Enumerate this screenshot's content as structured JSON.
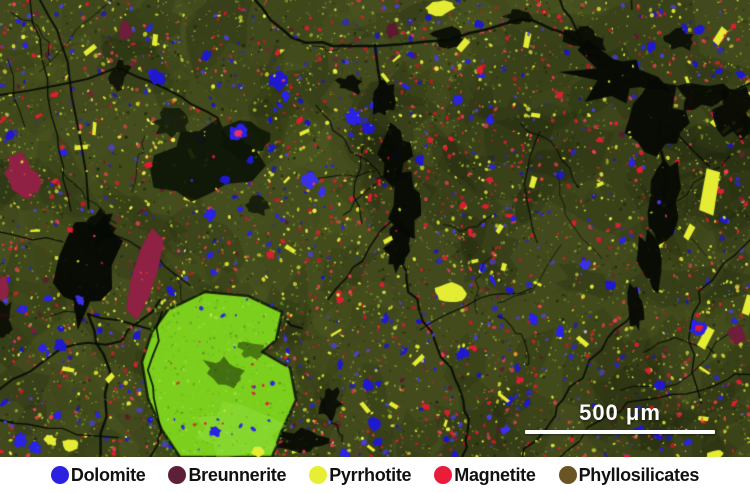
{
  "figure": {
    "scale_bar": {
      "label": "500 μm",
      "color": "#ffffff"
    },
    "legend": {
      "background": "#ffffff",
      "text_color": "#111111",
      "items": [
        {
          "label": "Dolomite",
          "color": "#2b22e0"
        },
        {
          "label": "Breunnerite",
          "color": "#5e2038"
        },
        {
          "label": "Pyrrhotite",
          "color": "#e7ef35"
        },
        {
          "label": "Magnetite",
          "color": "#ea1c3a"
        },
        {
          "label": "Phyllosilicates",
          "color": "#6b5423"
        }
      ]
    },
    "map": {
      "matrix_color": "#41491d",
      "matrix_speckle_color": "#8fa32e",
      "void_color": "#060903",
      "dolomite_grain_color": "#2a22e6",
      "magnetite_grain_color": "#e01d30",
      "pyrrhotite_grain_color": "#e4ec33",
      "breunnerite_crystal_color": "#8e2144",
      "bright_inclusion_color": "#7dcf1e"
    }
  }
}
